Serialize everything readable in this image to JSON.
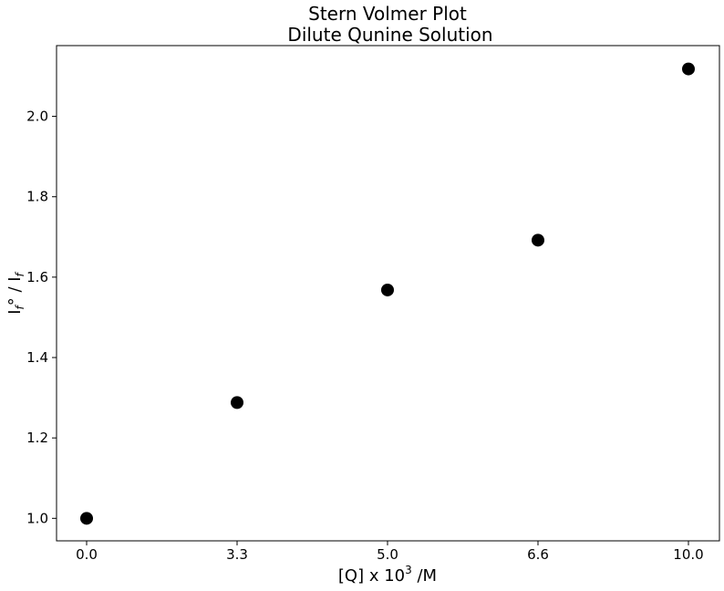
{
  "chart_data": {
    "type": "scatter",
    "title": "Stern Volmer Plot",
    "subtitle": "Dilute Qunine Solution",
    "xlabel": "[Q] x 10",
    "xlabel_sup": "3",
    "xlabel_suffix": " /M",
    "ylabel": "I",
    "ylabel_sub": "f",
    "ylabel_mid": "° / I",
    "ylabel_sub2": "f",
    "x_tick_labels": [
      "0.0",
      "3.3",
      "5.0",
      "6.6",
      "10.0"
    ],
    "y_ticks": [
      1.0,
      1.2,
      1.4,
      1.6,
      1.8,
      2.0
    ],
    "y_tick_labels": [
      "1.0",
      "1.2",
      "1.4",
      "1.6",
      "1.8",
      "2.0"
    ],
    "ylim": [
      0.944,
      2.176
    ],
    "point_color": "#000000",
    "grid": false,
    "series": [
      {
        "values": [
          1.0,
          1.288,
          1.568,
          1.692,
          2.118
        ]
      }
    ]
  }
}
